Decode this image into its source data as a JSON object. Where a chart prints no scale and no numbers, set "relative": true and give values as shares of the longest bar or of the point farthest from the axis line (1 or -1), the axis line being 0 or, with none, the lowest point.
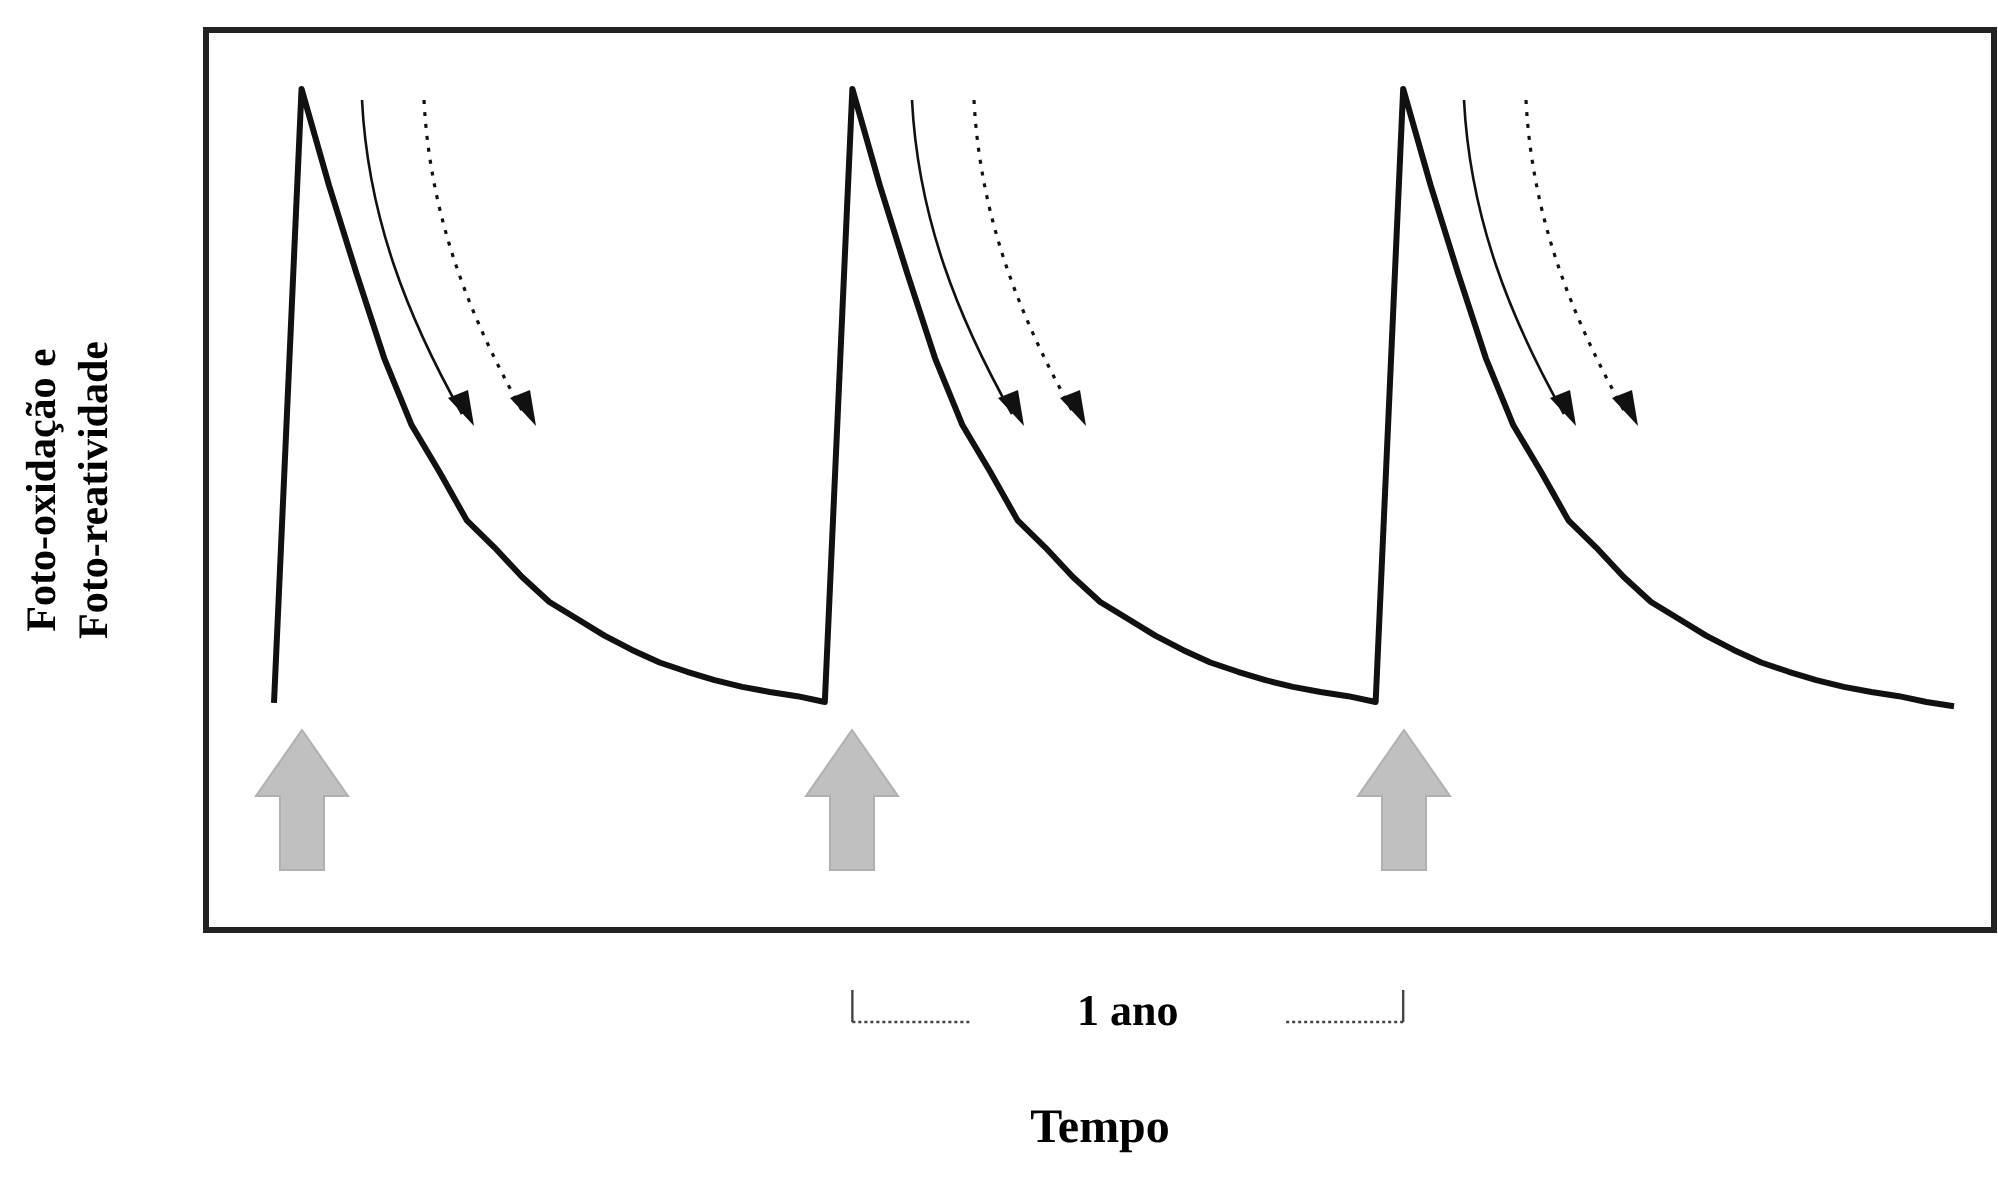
{
  "chart_data": {
    "type": "line",
    "relative": true,
    "xlabel": "Tempo",
    "ylabel": "Foto-oxidação e Foto-reatividade",
    "marker": "none",
    "line_style": "solid",
    "annotations": [
      "1 ano"
    ],
    "categories": [
      null,
      null,
      null,
      null,
      null,
      null,
      null,
      null,
      null,
      null,
      null,
      null,
      null,
      null,
      null,
      null,
      null,
      null,
      null,
      null,
      null,
      null,
      null,
      null,
      null,
      null,
      null,
      null,
      null,
      null,
      null,
      null,
      null,
      null,
      null,
      null,
      null,
      null,
      null,
      null,
      null,
      null,
      null,
      null,
      null,
      null,
      null,
      null,
      null,
      null,
      null,
      null,
      null,
      null,
      null,
      null,
      null,
      null,
      null,
      null,
      null,
      null
    ],
    "series": [
      {
        "color": "#111111",
        "values": [
          0.27,
          1,
          0.885,
          0.78,
          0.68,
          0.6,
          0.545,
          0.487,
          0.455,
          0.42,
          0.39,
          0.37,
          0.35,
          0.333,
          0.318,
          0.307,
          0.297,
          0.289,
          0.283,
          0.278,
          0.271,
          1,
          0.885,
          0.78,
          0.68,
          0.6,
          0.545,
          0.487,
          0.455,
          0.42,
          0.39,
          0.37,
          0.35,
          0.333,
          0.318,
          0.307,
          0.297,
          0.289,
          0.283,
          0.278,
          0.271,
          1,
          0.885,
          0.78,
          0.68,
          0.6,
          0.545,
          0.487,
          0.455,
          0.42,
          0.39,
          0.37,
          0.35,
          0.333,
          0.318,
          0.307,
          0.297,
          0.289,
          0.283,
          0.278,
          0.271,
          0.266
        ]
      }
    ]
  }
}
